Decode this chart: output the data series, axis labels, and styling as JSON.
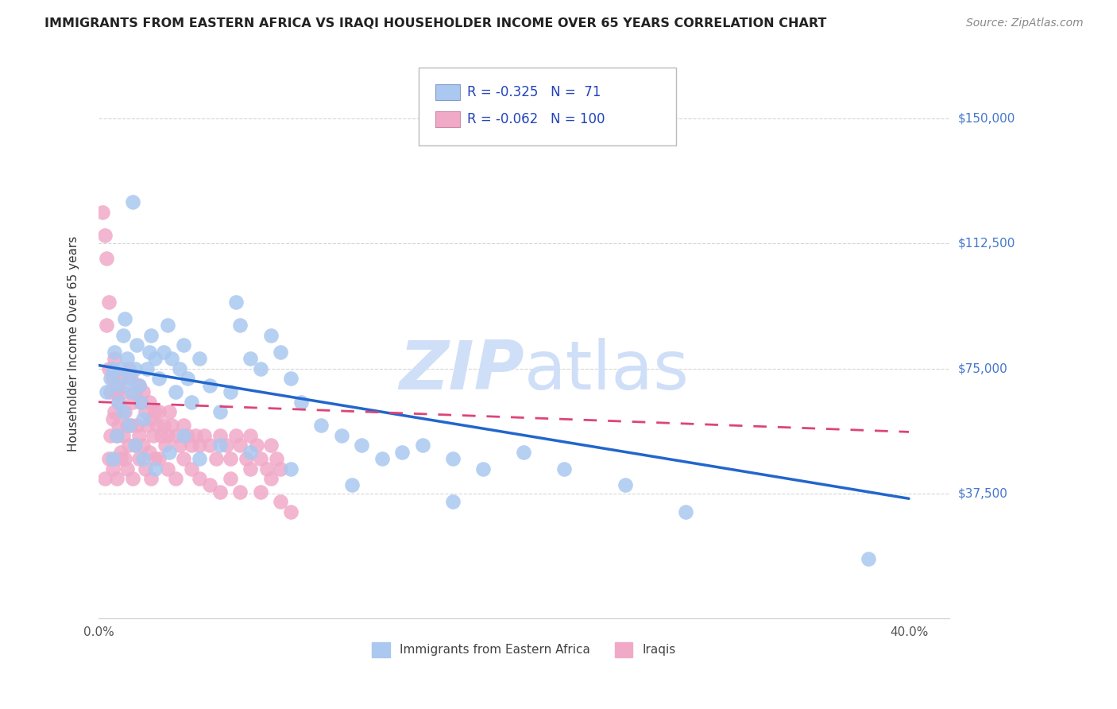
{
  "title": "IMMIGRANTS FROM EASTERN AFRICA VS IRAQI HOUSEHOLDER INCOME OVER 65 YEARS CORRELATION CHART",
  "source": "Source: ZipAtlas.com",
  "ylabel": "Householder Income Over 65 years",
  "xlim": [
    0.0,
    0.42
  ],
  "ylim": [
    0,
    165000
  ],
  "yticks": [
    0,
    37500,
    75000,
    112500,
    150000
  ],
  "ytick_labels_right": [
    "$150,000",
    "$112,500",
    "$75,000",
    "$37,500"
  ],
  "background_color": "#ffffff",
  "grid_color": "#cccccc",
  "blue_color": "#aac8f0",
  "pink_color": "#f0aac8",
  "blue_line_color": "#2266cc",
  "pink_line_color": "#dd4477",
  "watermark_color": "#d0dff8",
  "legend_R1": "-0.325",
  "legend_N1": "71",
  "legend_R2": "-0.062",
  "legend_N2": "100",
  "blue_line_x0": 0.0,
  "blue_line_y0": 76000,
  "blue_line_x1": 0.4,
  "blue_line_y1": 36000,
  "pink_line_x0": 0.0,
  "pink_line_y0": 65000,
  "pink_line_x1": 0.4,
  "pink_line_y1": 56000,
  "blue_scatter_x": [
    0.004,
    0.006,
    0.007,
    0.008,
    0.01,
    0.01,
    0.011,
    0.012,
    0.013,
    0.014,
    0.015,
    0.016,
    0.017,
    0.018,
    0.019,
    0.02,
    0.021,
    0.022,
    0.024,
    0.025,
    0.026,
    0.028,
    0.03,
    0.032,
    0.034,
    0.036,
    0.038,
    0.04,
    0.042,
    0.044,
    0.046,
    0.05,
    0.055,
    0.06,
    0.065,
    0.068,
    0.07,
    0.075,
    0.08,
    0.085,
    0.09,
    0.095,
    0.1,
    0.11,
    0.12,
    0.13,
    0.14,
    0.15,
    0.16,
    0.175,
    0.19,
    0.21,
    0.23,
    0.26,
    0.29,
    0.007,
    0.009,
    0.012,
    0.015,
    0.018,
    0.022,
    0.028,
    0.035,
    0.042,
    0.05,
    0.06,
    0.075,
    0.095,
    0.125,
    0.175,
    0.38
  ],
  "blue_scatter_y": [
    68000,
    72000,
    75000,
    80000,
    65000,
    70000,
    75000,
    85000,
    90000,
    78000,
    72000,
    68000,
    125000,
    75000,
    82000,
    70000,
    65000,
    60000,
    75000,
    80000,
    85000,
    78000,
    72000,
    80000,
    88000,
    78000,
    68000,
    75000,
    82000,
    72000,
    65000,
    78000,
    70000,
    62000,
    68000,
    95000,
    88000,
    78000,
    75000,
    85000,
    80000,
    72000,
    65000,
    58000,
    55000,
    52000,
    48000,
    50000,
    52000,
    48000,
    45000,
    50000,
    45000,
    40000,
    32000,
    48000,
    55000,
    62000,
    58000,
    52000,
    48000,
    45000,
    50000,
    55000,
    48000,
    52000,
    50000,
    45000,
    40000,
    35000,
    18000
  ],
  "pink_scatter_x": [
    0.002,
    0.003,
    0.004,
    0.004,
    0.005,
    0.005,
    0.006,
    0.006,
    0.007,
    0.007,
    0.008,
    0.008,
    0.009,
    0.009,
    0.01,
    0.01,
    0.011,
    0.011,
    0.012,
    0.012,
    0.013,
    0.013,
    0.014,
    0.015,
    0.015,
    0.016,
    0.016,
    0.017,
    0.018,
    0.018,
    0.019,
    0.02,
    0.02,
    0.021,
    0.022,
    0.022,
    0.023,
    0.024,
    0.025,
    0.025,
    0.026,
    0.027,
    0.028,
    0.028,
    0.029,
    0.03,
    0.031,
    0.032,
    0.033,
    0.034,
    0.035,
    0.036,
    0.038,
    0.04,
    0.042,
    0.044,
    0.046,
    0.048,
    0.05,
    0.052,
    0.055,
    0.058,
    0.06,
    0.063,
    0.065,
    0.068,
    0.07,
    0.073,
    0.075,
    0.078,
    0.08,
    0.083,
    0.085,
    0.088,
    0.09,
    0.003,
    0.005,
    0.007,
    0.009,
    0.011,
    0.014,
    0.017,
    0.02,
    0.023,
    0.026,
    0.03,
    0.034,
    0.038,
    0.042,
    0.046,
    0.05,
    0.055,
    0.06,
    0.065,
    0.07,
    0.075,
    0.08,
    0.085,
    0.09,
    0.095
  ],
  "pink_scatter_y": [
    122000,
    115000,
    108000,
    88000,
    95000,
    75000,
    68000,
    55000,
    72000,
    60000,
    78000,
    62000,
    68000,
    55000,
    65000,
    58000,
    72000,
    50000,
    68000,
    55000,
    62000,
    48000,
    58000,
    75000,
    52000,
    72000,
    58000,
    65000,
    68000,
    52000,
    58000,
    70000,
    55000,
    65000,
    68000,
    52000,
    62000,
    58000,
    65000,
    50000,
    60000,
    55000,
    62000,
    48000,
    58000,
    62000,
    55000,
    58000,
    52000,
    55000,
    62000,
    58000,
    55000,
    52000,
    58000,
    55000,
    52000,
    55000,
    52000,
    55000,
    52000,
    48000,
    55000,
    52000,
    48000,
    55000,
    52000,
    48000,
    55000,
    52000,
    48000,
    45000,
    52000,
    48000,
    45000,
    42000,
    48000,
    45000,
    42000,
    48000,
    45000,
    42000,
    48000,
    45000,
    42000,
    48000,
    45000,
    42000,
    48000,
    45000,
    42000,
    40000,
    38000,
    42000,
    38000,
    45000,
    38000,
    42000,
    35000,
    32000
  ]
}
